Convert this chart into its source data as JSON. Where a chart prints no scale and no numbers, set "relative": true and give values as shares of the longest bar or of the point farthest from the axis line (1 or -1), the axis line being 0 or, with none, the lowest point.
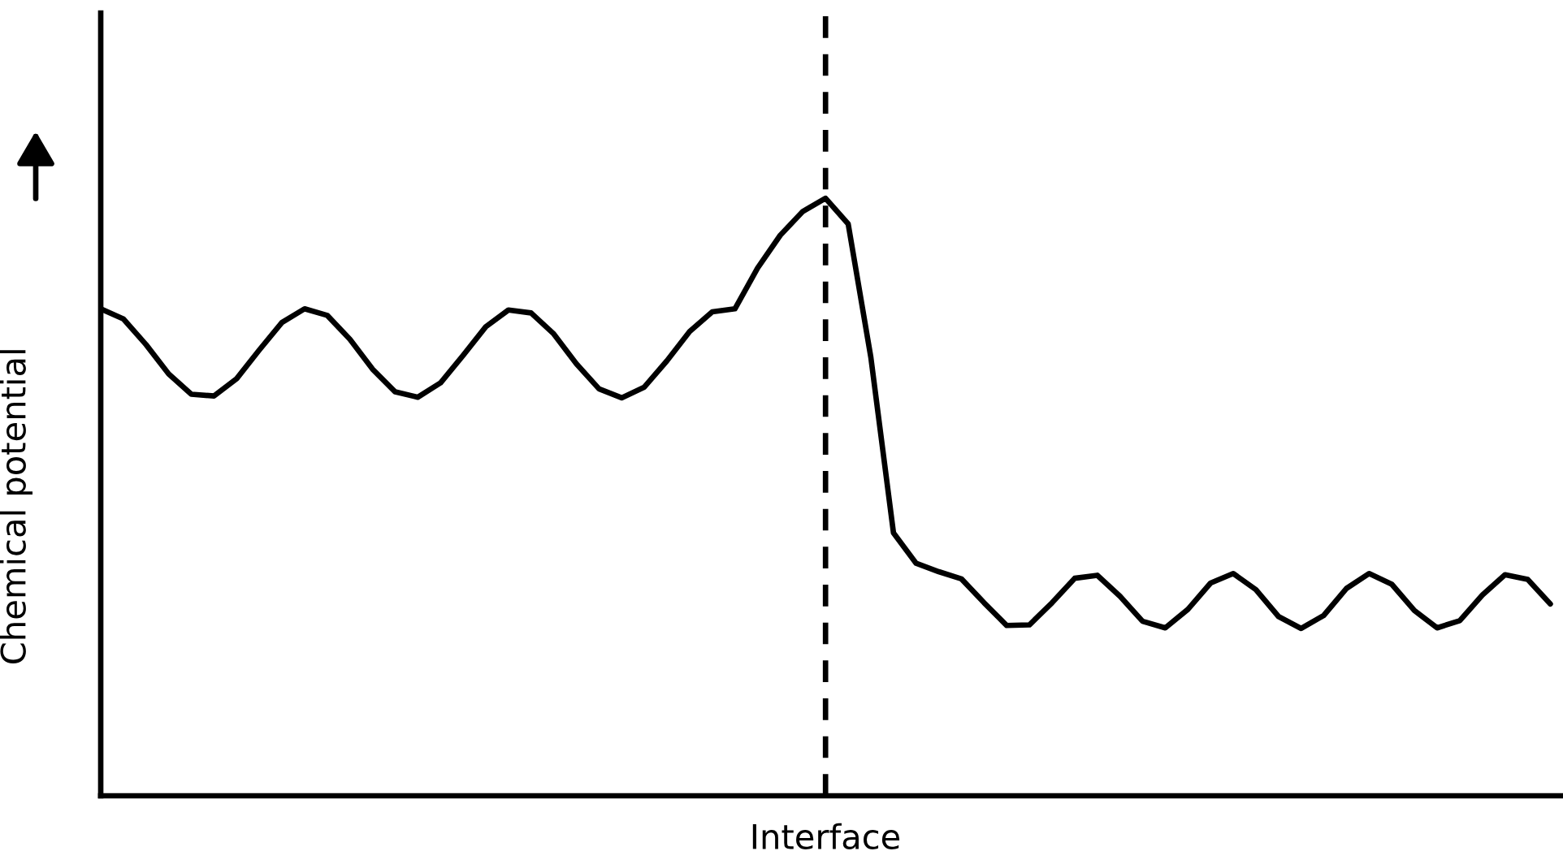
{
  "chart_data": {
    "type": "line",
    "relative": true,
    "xlabel": "Interface",
    "ylabel": "Chemical potential",
    "categories": [
      null,
      null,
      null,
      null,
      null,
      null,
      null,
      null,
      null,
      null,
      null,
      null,
      null,
      null,
      null,
      null,
      null,
      null,
      null,
      null,
      null,
      null,
      null,
      null,
      null,
      null,
      null,
      null,
      null,
      null,
      null,
      null,
      null,
      null,
      null,
      null,
      null,
      null,
      null,
      null,
      null,
      null,
      null,
      null,
      null,
      null,
      null,
      null,
      null,
      null,
      null,
      null,
      null,
      null,
      null,
      null,
      null,
      null,
      null,
      null,
      null,
      null,
      null,
      null,
      null
    ],
    "series": [
      {
        "color": "#000000",
        "values": [
          0.815,
          0.798,
          0.755,
          0.706,
          0.672,
          0.669,
          0.698,
          0.746,
          0.792,
          0.815,
          0.804,
          0.764,
          0.714,
          0.676,
          0.667,
          0.691,
          0.737,
          0.785,
          0.813,
          0.808,
          0.773,
          0.723,
          0.681,
          0.666,
          0.684,
          0.728,
          0.777,
          0.81,
          0.815,
          0.883,
          0.938,
          0.978,
          1,
          0.957,
          0.734,
          0.44,
          0.389,
          0.375,
          0.363,
          0.323,
          0.285,
          0.286,
          0.323,
          0.364,
          0.369,
          0.334,
          0.292,
          0.281,
          0.312,
          0.356,
          0.372,
          0.345,
          0.3,
          0.28,
          0.302,
          0.347,
          0.372,
          0.354,
          0.31,
          0.281,
          0.293,
          0.336,
          0.37,
          0.362,
          0.321
        ]
      }
    ],
    "grid": false,
    "legend": false,
    "marker": "none",
    "line_style": "solid"
  }
}
